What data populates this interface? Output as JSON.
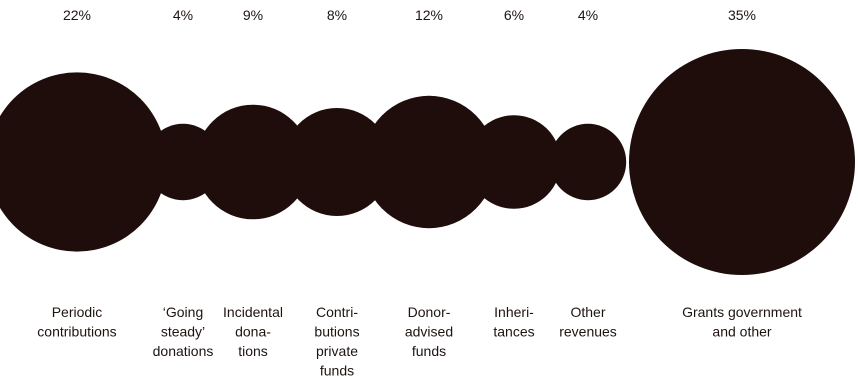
{
  "chart_data": {
    "type": "bubble",
    "title": "",
    "categories": [
      [
        "Periodic",
        "contributions"
      ],
      [
        "‘Going",
        "steady’",
        "donations"
      ],
      [
        "Incidental",
        "dona-",
        "tions"
      ],
      [
        "Contri-",
        "butions",
        "private",
        "funds"
      ],
      [
        "Donor-",
        "advised",
        "funds"
      ],
      [
        "Inheri-",
        "tances"
      ],
      [
        "Other",
        "revenues"
      ],
      [
        "Grants government",
        "and other"
      ]
    ],
    "values": [
      22,
      4,
      9,
      8,
      12,
      6,
      4,
      35
    ],
    "value_labels": [
      "22%",
      "4%",
      "9%",
      "8%",
      "12%",
      "6%",
      "4%",
      "35%"
    ],
    "unit": "%",
    "colors": {
      "bubble": "#1e0d0b",
      "text": "#1e1410"
    }
  }
}
